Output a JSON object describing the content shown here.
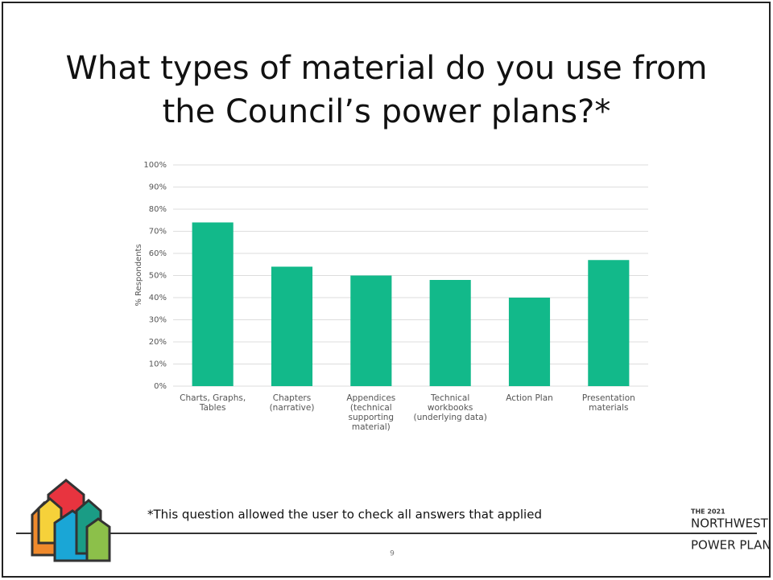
{
  "chart_data": {
    "type": "bar",
    "title": "What types of material do you use from the Council’s power plans?*",
    "y_label": "% Respondents",
    "categories": [
      "Charts, Graphs, Tables",
      "Chapters (narrative)",
      "Appendices (technical supporting material)",
      "Technical workbooks (underlying data)",
      "Action Plan",
      "Presentation materials"
    ],
    "values": [
      74,
      54,
      50,
      48,
      40,
      57
    ],
    "color": "#12b98a",
    "ylim": [
      0,
      100
    ],
    "yticks": [
      {
        "value": 0,
        "label": "0%"
      },
      {
        "value": 10,
        "label": "10%"
      },
      {
        "value": 20,
        "label": "20%"
      },
      {
        "value": 30,
        "label": "30%"
      },
      {
        "value": 40,
        "label": "40%"
      },
      {
        "value": 50,
        "label": "50%"
      },
      {
        "value": 60,
        "label": "60%"
      },
      {
        "value": 70,
        "label": "70%"
      },
      {
        "value": 80,
        "label": "80%"
      },
      {
        "value": 90,
        "label": "90%"
      },
      {
        "value": 100,
        "label": "100%"
      }
    ],
    "grid": true
  },
  "footnote": "*This question allowed the user to check all answers that applied",
  "page_number": "9",
  "logo": {
    "line1": "THE 2021",
    "line2": "NORTHWEST",
    "line3": "POWER PLAN"
  }
}
